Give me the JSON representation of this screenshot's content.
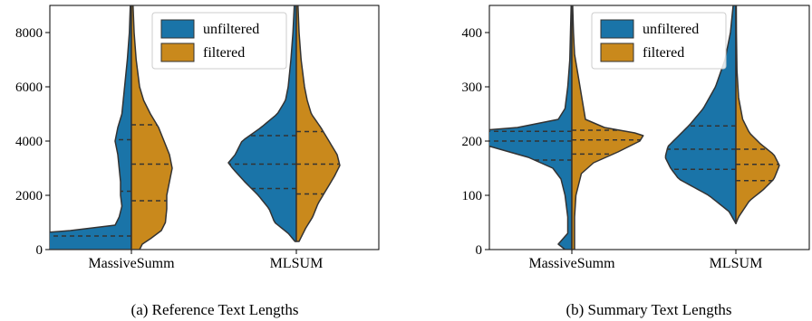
{
  "colors": {
    "unfiltered": "#1a74a8",
    "filtered": "#c9891c",
    "outline": "#333333"
  },
  "chart_data": [
    {
      "type": "violin",
      "title": "(a) Reference Text Lengths",
      "xlabel": "",
      "ylabel": "",
      "categories": [
        "MassiveSumm",
        "MLSUM"
      ],
      "ylim": [
        0,
        9000
      ],
      "yticks": [
        0,
        2000,
        4000,
        6000,
        8000
      ],
      "legend": {
        "placement": "top-center",
        "entries": [
          "unfiltered",
          "filtered"
        ]
      },
      "series": [
        {
          "name": "unfiltered",
          "violins": [
            {
              "category": "MassiveSumm",
              "quartiles": [
                500,
                2150,
                4050
              ],
              "profile": [
                [
                  0,
                  0.6
                ],
                [
                  200,
                  0.88
                ],
                [
                  400,
                  0.98
                ],
                [
                  500,
                  0.95
                ],
                [
                  700,
                  0.45
                ],
                [
                  900,
                  0.12
                ],
                [
                  1200,
                  0.09
                ],
                [
                  1600,
                  0.07
                ],
                [
                  2000,
                  0.08
                ],
                [
                  2500,
                  0.08
                ],
                [
                  3000,
                  0.09
                ],
                [
                  3500,
                  0.1
                ],
                [
                  4000,
                  0.12
                ],
                [
                  4500,
                  0.1
                ],
                [
                  5000,
                  0.07
                ],
                [
                  5500,
                  0.06
                ],
                [
                  6000,
                  0.05
                ],
                [
                  7000,
                  0.03
                ],
                [
                  8000,
                  0.015
                ],
                [
                  9000,
                  0.008
                ]
              ]
            },
            {
              "category": "MLSUM",
              "quartiles": [
                2250,
                3150,
                4200
              ],
              "profile": [
                [
                  300,
                  0.01
                ],
                [
                  600,
                  0.06
                ],
                [
                  1000,
                  0.16
                ],
                [
                  1500,
                  0.2
                ],
                [
                  2000,
                  0.28
                ],
                [
                  2500,
                  0.38
                ],
                [
                  3000,
                  0.47
                ],
                [
                  3200,
                  0.5
                ],
                [
                  3500,
                  0.45
                ],
                [
                  4000,
                  0.4
                ],
                [
                  4500,
                  0.26
                ],
                [
                  5000,
                  0.14
                ],
                [
                  5500,
                  0.08
                ],
                [
                  6000,
                  0.06
                ],
                [
                  7000,
                  0.04
                ],
                [
                  8000,
                  0.025
                ],
                [
                  9000,
                  0.015
                ]
              ]
            }
          ]
        },
        {
          "name": "filtered",
          "violins": [
            {
              "category": "MassiveSumm",
              "quartiles": [
                1800,
                3150,
                4600
              ],
              "profile": [
                [
                  0,
                  0.06
                ],
                [
                  200,
                  0.08
                ],
                [
                  400,
                  0.14
                ],
                [
                  700,
                  0.22
                ],
                [
                  1000,
                  0.25
                ],
                [
                  1500,
                  0.26
                ],
                [
                  2000,
                  0.26
                ],
                [
                  2500,
                  0.28
                ],
                [
                  3000,
                  0.3
                ],
                [
                  3500,
                  0.28
                ],
                [
                  4000,
                  0.24
                ],
                [
                  4500,
                  0.2
                ],
                [
                  5000,
                  0.14
                ],
                [
                  5500,
                  0.09
                ],
                [
                  6000,
                  0.06
                ],
                [
                  7000,
                  0.035
                ],
                [
                  8000,
                  0.02
                ],
                [
                  9000,
                  0.012
                ]
              ]
            },
            {
              "category": "MLSUM",
              "quartiles": [
                2050,
                3150,
                4350
              ],
              "profile": [
                [
                  300,
                  0.02
                ],
                [
                  800,
                  0.07
                ],
                [
                  1200,
                  0.12
                ],
                [
                  1700,
                  0.16
                ],
                [
                  2200,
                  0.22
                ],
                [
                  2700,
                  0.28
                ],
                [
                  3100,
                  0.32
                ],
                [
                  3500,
                  0.3
                ],
                [
                  4000,
                  0.24
                ],
                [
                  4500,
                  0.18
                ],
                [
                  5000,
                  0.11
                ],
                [
                  5500,
                  0.08
                ],
                [
                  6000,
                  0.06
                ],
                [
                  7000,
                  0.035
                ],
                [
                  8000,
                  0.02
                ],
                [
                  9000,
                  0.012
                ]
              ]
            }
          ]
        }
      ]
    },
    {
      "type": "violin",
      "title": "(b) Summary Text Lengths",
      "xlabel": "",
      "ylabel": "",
      "categories": [
        "MassiveSumm",
        "MLSUM"
      ],
      "ylim": [
        0,
        450
      ],
      "yticks": [
        0,
        100,
        200,
        300,
        400
      ],
      "legend": {
        "placement": "top-center",
        "entries": [
          "unfiltered",
          "filtered"
        ]
      },
      "series": [
        {
          "name": "unfiltered",
          "violins": [
            {
              "category": "MassiveSumm",
              "quartiles": [
                165,
                200,
                218
              ],
              "profile": [
                [
                  0,
                  0.05
                ],
                [
                  10,
                  0.1
                ],
                [
                  30,
                  0.03
                ],
                [
                  60,
                  0.03
                ],
                [
                  100,
                  0.05
                ],
                [
                  130,
                  0.08
                ],
                [
                  150,
                  0.14
                ],
                [
                  170,
                  0.32
                ],
                [
                  190,
                  0.6
                ],
                [
                  205,
                  0.88
                ],
                [
                  215,
                  0.9
                ],
                [
                  225,
                  0.4
                ],
                [
                  240,
                  0.1
                ],
                [
                  260,
                  0.05
                ],
                [
                  300,
                  0.03
                ],
                [
                  350,
                  0.015
                ],
                [
                  400,
                  0.01
                ],
                [
                  450,
                  0.005
                ]
              ]
            },
            {
              "category": "MLSUM",
              "quartiles": [
                148,
                185,
                228
              ],
              "profile": [
                [
                  48,
                  0.0
                ],
                [
                  70,
                  0.05
                ],
                [
                  100,
                  0.2
                ],
                [
                  130,
                  0.42
                ],
                [
                  150,
                  0.48
                ],
                [
                  170,
                  0.52
                ],
                [
                  190,
                  0.5
                ],
                [
                  210,
                  0.42
                ],
                [
                  230,
                  0.34
                ],
                [
                  260,
                  0.24
                ],
                [
                  300,
                  0.15
                ],
                [
                  350,
                  0.08
                ],
                [
                  400,
                  0.04
                ],
                [
                  450,
                  0.02
                ]
              ]
            }
          ]
        },
        {
          "name": "filtered",
          "violins": [
            {
              "category": "MassiveSumm",
              "quartiles": [
                176,
                202,
                220
              ],
              "profile": [
                [
                  0,
                  0.02
                ],
                [
                  60,
                  0.02
                ],
                [
                  100,
                  0.03
                ],
                [
                  140,
                  0.07
                ],
                [
                  160,
                  0.16
                ],
                [
                  180,
                  0.34
                ],
                [
                  200,
                  0.5
                ],
                [
                  212,
                  0.53
                ],
                [
                  225,
                  0.24
                ],
                [
                  240,
                  0.1
                ],
                [
                  270,
                  0.08
                ],
                [
                  300,
                  0.06
                ],
                [
                  330,
                  0.04
                ],
                [
                  360,
                  0.02
                ],
                [
                  400,
                  0.012
                ],
                [
                  450,
                  0.006
                ]
              ]
            },
            {
              "category": "MLSUM",
              "quartiles": [
                127,
                157,
                185
              ],
              "profile": [
                [
                  48,
                  0.0
                ],
                [
                  60,
                  0.02
                ],
                [
                  90,
                  0.1
                ],
                [
                  110,
                  0.2
                ],
                [
                  130,
                  0.28
                ],
                [
                  155,
                  0.32
                ],
                [
                  175,
                  0.28
                ],
                [
                  195,
                  0.18
                ],
                [
                  215,
                  0.1
                ],
                [
                  240,
                  0.05
                ],
                [
                  280,
                  0.02
                ],
                [
                  330,
                  0.008
                ],
                [
                  400,
                  0.004
                ],
                [
                  450,
                  0.003
                ]
              ]
            }
          ]
        }
      ]
    }
  ]
}
